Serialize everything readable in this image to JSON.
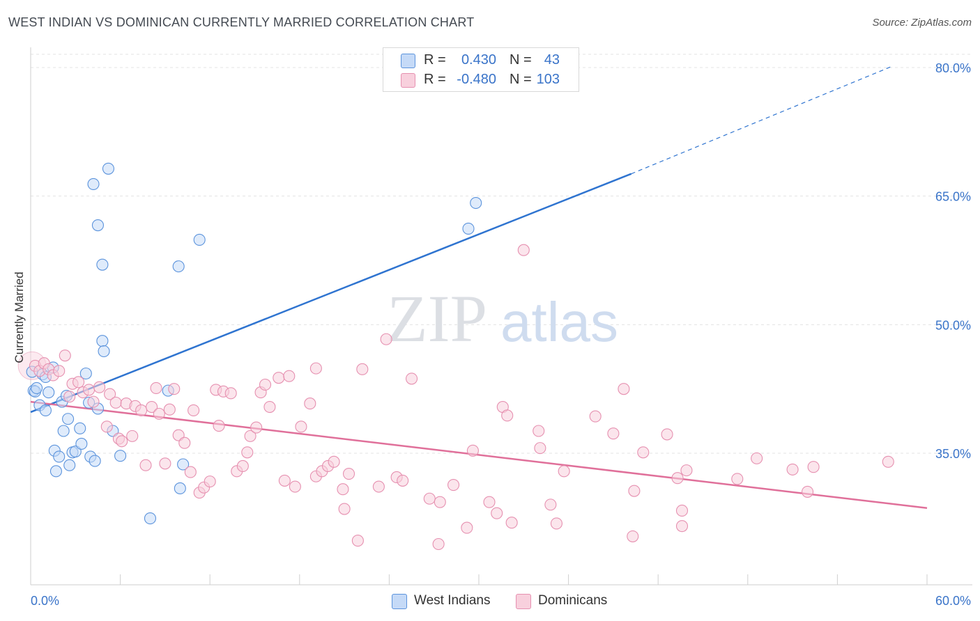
{
  "title": "WEST INDIAN VS DOMINICAN CURRENTLY MARRIED CORRELATION CHART",
  "source": "Source: ZipAtlas.com",
  "watermark": {
    "zip": "ZIP",
    "atlas": "atlas"
  },
  "colors": {
    "blue": "#2f74d0",
    "blue_fill": "#c5daf7",
    "blue_stroke": "#5b93dc",
    "pink": "#e0709a",
    "pink_fill": "#f8d0dd",
    "pink_stroke": "#e690b0",
    "tick_label": "#3a74c9",
    "grid": "#e3e3e3"
  },
  "stats": [
    {
      "r_label": "R =",
      "r_value": "0.430",
      "n_label": "N =",
      "n_value": "43",
      "color": "#2f74d0"
    },
    {
      "r_label": "R =",
      "r_value": "-0.480",
      "n_label": "N =",
      "n_value": "103",
      "color": "#e0709a"
    }
  ],
  "legend": [
    {
      "label": "West Indians",
      "color": "#2f74d0"
    },
    {
      "label": "Dominicans",
      "color": "#e0709a"
    }
  ],
  "chart_data": {
    "type": "scatter",
    "title": "WEST INDIAN VS DOMINICAN CURRENTLY MARRIED CORRELATION CHART",
    "xlabel": "",
    "ylabel": "Currently Married",
    "xlim": [
      0,
      60
    ],
    "ylim": [
      20,
      82
    ],
    "x_tick_labels": [
      "0.0%",
      "60.0%"
    ],
    "y_ticks": [
      35,
      50,
      65,
      80
    ],
    "y_tick_labels": [
      "35.0%",
      "50.0%",
      "65.0%",
      "80.0%"
    ],
    "grid": true,
    "legend_position": "bottom",
    "series": [
      {
        "name": "West Indians",
        "R": 0.43,
        "N": 43,
        "trend": {
          "x0": 0,
          "y0": 39.8,
          "x1": 40.2,
          "y1": 67.6,
          "dash_x1": 57.6,
          "dash_y1": 80.1
        },
        "points": [
          [
            0.1,
            44.5
          ],
          [
            0.2,
            42.3
          ],
          [
            0.3,
            42.2
          ],
          [
            0.4,
            42.6
          ],
          [
            0.6,
            40.6
          ],
          [
            0.8,
            44.2
          ],
          [
            1.0,
            40.0
          ],
          [
            1.0,
            43.9
          ],
          [
            1.2,
            42.1
          ],
          [
            1.5,
            45.0
          ],
          [
            1.6,
            35.3
          ],
          [
            1.7,
            32.9
          ],
          [
            1.9,
            34.6
          ],
          [
            2.1,
            41.0
          ],
          [
            2.2,
            37.6
          ],
          [
            2.4,
            41.7
          ],
          [
            2.5,
            39.0
          ],
          [
            2.6,
            33.6
          ],
          [
            2.8,
            35.1
          ],
          [
            3.0,
            35.2
          ],
          [
            3.3,
            37.9
          ],
          [
            3.4,
            36.1
          ],
          [
            3.7,
            44.3
          ],
          [
            3.9,
            40.9
          ],
          [
            4.0,
            34.6
          ],
          [
            4.3,
            34.1
          ],
          [
            4.5,
            40.2
          ],
          [
            4.5,
            61.6
          ],
          [
            4.2,
            66.4
          ],
          [
            4.8,
            57.0
          ],
          [
            4.8,
            48.1
          ],
          [
            4.9,
            46.9
          ],
          [
            5.2,
            68.2
          ],
          [
            5.5,
            37.6
          ],
          [
            6.0,
            34.7
          ],
          [
            8.0,
            27.4
          ],
          [
            9.2,
            42.3
          ],
          [
            9.9,
            56.8
          ],
          [
            10.0,
            30.9
          ],
          [
            10.2,
            33.7
          ],
          [
            11.3,
            59.9
          ],
          [
            29.3,
            61.2
          ],
          [
            29.8,
            64.2
          ]
        ]
      },
      {
        "name": "Dominicans",
        "R": -0.48,
        "N": 103,
        "trend": {
          "x0": 0,
          "y0": 41.0,
          "x1": 60,
          "y1": 28.6
        },
        "points": [
          [
            0.3,
            45.2
          ],
          [
            0.6,
            44.6
          ],
          [
            0.9,
            45.5
          ],
          [
            1.2,
            44.8
          ],
          [
            1.5,
            44.1
          ],
          [
            1.9,
            44.6
          ],
          [
            2.3,
            46.4
          ],
          [
            2.6,
            41.6
          ],
          [
            2.8,
            43.1
          ],
          [
            3.2,
            43.3
          ],
          [
            3.5,
            42.1
          ],
          [
            3.9,
            42.4
          ],
          [
            4.2,
            41.0
          ],
          [
            4.6,
            42.7
          ],
          [
            5.1,
            38.1
          ],
          [
            5.3,
            41.9
          ],
          [
            5.7,
            40.9
          ],
          [
            5.9,
            36.7
          ],
          [
            6.1,
            36.4
          ],
          [
            6.4,
            40.8
          ],
          [
            6.8,
            37.0
          ],
          [
            7.0,
            40.5
          ],
          [
            7.4,
            40.0
          ],
          [
            7.7,
            33.6
          ],
          [
            8.1,
            40.4
          ],
          [
            8.4,
            42.6
          ],
          [
            8.6,
            39.6
          ],
          [
            9.0,
            33.8
          ],
          [
            9.3,
            40.1
          ],
          [
            9.6,
            42.5
          ],
          [
            9.9,
            37.1
          ],
          [
            10.3,
            36.2
          ],
          [
            10.7,
            32.8
          ],
          [
            10.9,
            40.0
          ],
          [
            11.3,
            30.4
          ],
          [
            11.6,
            31.0
          ],
          [
            12.0,
            31.7
          ],
          [
            12.4,
            42.4
          ],
          [
            12.6,
            38.2
          ],
          [
            12.9,
            42.2
          ],
          [
            13.4,
            42.0
          ],
          [
            13.8,
            32.9
          ],
          [
            14.2,
            33.5
          ],
          [
            14.5,
            35.1
          ],
          [
            14.7,
            37.0
          ],
          [
            15.1,
            38.0
          ],
          [
            15.4,
            42.1
          ],
          [
            15.7,
            43.0
          ],
          [
            16.0,
            40.4
          ],
          [
            16.6,
            43.8
          ],
          [
            17.0,
            31.8
          ],
          [
            17.3,
            44.0
          ],
          [
            17.7,
            31.1
          ],
          [
            18.1,
            38.1
          ],
          [
            18.7,
            40.8
          ],
          [
            19.1,
            32.3
          ],
          [
            19.1,
            44.9
          ],
          [
            19.5,
            32.9
          ],
          [
            19.9,
            33.5
          ],
          [
            20.3,
            34.0
          ],
          [
            20.9,
            30.8
          ],
          [
            21.0,
            28.5
          ],
          [
            21.3,
            32.6
          ],
          [
            21.9,
            24.8
          ],
          [
            22.2,
            44.8
          ],
          [
            23.3,
            31.1
          ],
          [
            23.8,
            48.3
          ],
          [
            24.5,
            32.2
          ],
          [
            24.9,
            31.8
          ],
          [
            25.5,
            43.7
          ],
          [
            26.7,
            29.7
          ],
          [
            27.3,
            24.4
          ],
          [
            27.4,
            29.3
          ],
          [
            28.3,
            31.3
          ],
          [
            29.2,
            26.3
          ],
          [
            29.6,
            35.3
          ],
          [
            30.7,
            29.3
          ],
          [
            31.2,
            28.0
          ],
          [
            31.6,
            40.4
          ],
          [
            31.9,
            39.4
          ],
          [
            32.2,
            26.9
          ],
          [
            33.0,
            58.7
          ],
          [
            34.0,
            37.6
          ],
          [
            34.1,
            35.6
          ],
          [
            34.8,
            29.0
          ],
          [
            35.2,
            26.8
          ],
          [
            35.7,
            32.9
          ],
          [
            37.8,
            39.3
          ],
          [
            39.0,
            37.3
          ],
          [
            39.7,
            42.5
          ],
          [
            40.3,
            25.3
          ],
          [
            40.4,
            30.6
          ],
          [
            41.0,
            35.1
          ],
          [
            42.6,
            37.2
          ],
          [
            43.3,
            32.1
          ],
          [
            43.9,
            33.0
          ],
          [
            43.6,
            28.3
          ],
          [
            43.6,
            26.5
          ],
          [
            47.3,
            32.0
          ],
          [
            48.6,
            34.4
          ],
          [
            51.0,
            33.1
          ],
          [
            52.0,
            30.5
          ],
          [
            52.4,
            33.4
          ],
          [
            57.4,
            34.0
          ]
        ]
      }
    ]
  }
}
